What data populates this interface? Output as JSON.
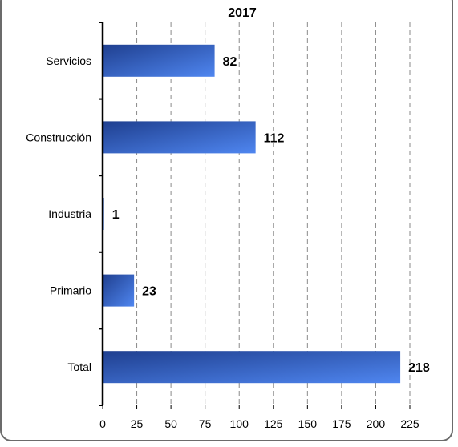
{
  "chart_data": {
    "type": "bar",
    "orientation": "horizontal",
    "title": "2017",
    "categories": [
      "Servicios",
      "Construcción",
      "Industria",
      "Primario",
      "Total"
    ],
    "values": [
      82,
      112,
      1,
      23,
      218
    ],
    "data_labels": [
      "82",
      "112",
      "1",
      "23",
      "218"
    ],
    "xlim": [
      0,
      225
    ],
    "xticks": [
      "0",
      "25",
      "50",
      "75",
      "100",
      "125",
      "150",
      "175",
      "200",
      "225"
    ],
    "grid": "vertical dashed",
    "legend": "none",
    "colors": {
      "bar_dark": "#1f3f8f",
      "bar_light": "#4f86f0",
      "grid": "#8a8a8a",
      "axis": "#000000"
    }
  }
}
